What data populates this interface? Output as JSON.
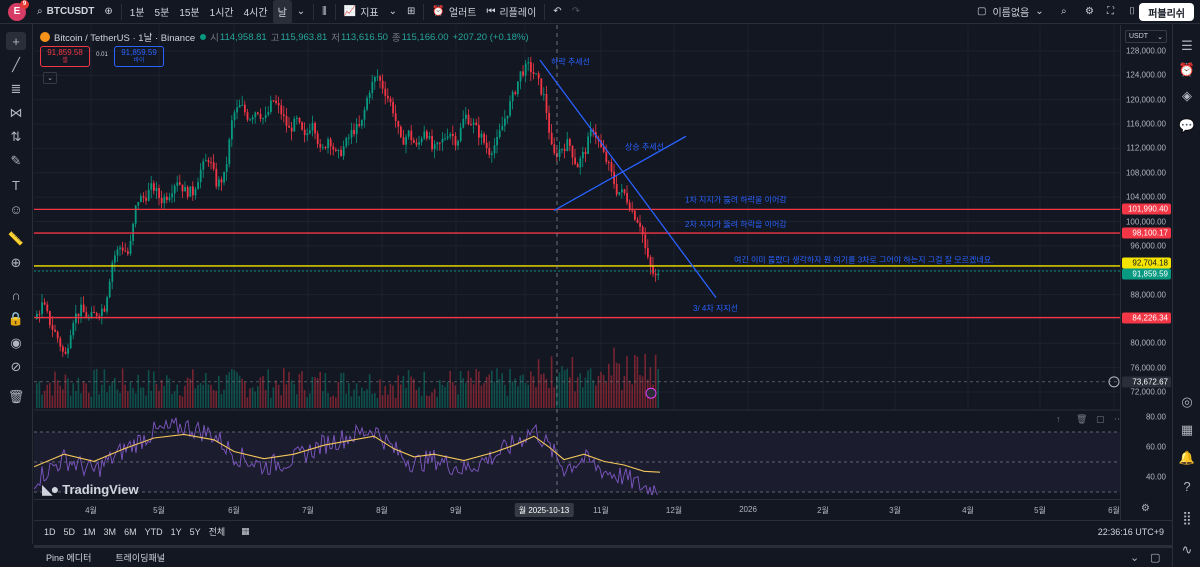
{
  "toolbar": {
    "avatar_letter": "E",
    "avatar_badge": "9",
    "symbol": "BTCUSDT",
    "timeframes": [
      "1분",
      "5분",
      "15분",
      "1시간",
      "4시간",
      "날"
    ],
    "active_timeframe": "날",
    "indicators_label": "지표",
    "alert_label": "얼러트",
    "replay_label": "리플레이",
    "layout_name": "이름없음",
    "publish_label": "퍼블리쉬"
  },
  "legend": {
    "pair": "Bitcoin / TetherUS · 1날 · Binance",
    "open_key": "시",
    "open": "114,958.81",
    "high_key": "고",
    "high": "115,963.81",
    "low_key": "저",
    "low": "113,616.50",
    "close_key": "종",
    "close": "115,166.00",
    "change": "+207.20 (+0.18%)"
  },
  "trade": {
    "sell_price": "91,859.58",
    "sell_label": "셀",
    "spread": "0.01",
    "buy_price": "91,859.59",
    "buy_label": "바이"
  },
  "price_scale": {
    "currency": "USDT",
    "ticks": [
      "128,000.00",
      "124,000.00",
      "120,000.00",
      "116,000.00",
      "112,000.00",
      "108,000.00",
      "104,000.00",
      "100,000.00",
      "96,000.00",
      "92,000.00",
      "88,000.00",
      "84,000.00",
      "80,000.00",
      "76,000.00",
      "72,000.00"
    ],
    "labels": [
      {
        "text": "101,990.40",
        "color": "#f23645"
      },
      {
        "text": "98,100.17",
        "color": "#f23645"
      },
      {
        "text": "92,704.18",
        "color": "#f5e400"
      },
      {
        "text": "91,859.59",
        "color": "#089981"
      },
      {
        "text": "84,226.34",
        "color": "#f23645"
      },
      {
        "text": "73,672.67",
        "color": "#2a2e39"
      }
    ],
    "rsi_ticks": [
      "80.00",
      "60.00",
      "40.00"
    ]
  },
  "annotations": {
    "down_trend": "하락 추세선",
    "up_trend": "상승 추세선",
    "support1": "1차 지지가 뚫려 하락을 이어감",
    "support2": "2차 지지가 뚫려 하락을 이어감",
    "note": "여긴 이미 뚫렸다 생각하자 뭔 여기를 3차로 그어야 하는지 그걸 잘 모르겠네요.",
    "support34": "3/ 4차 지지선"
  },
  "time_axis": {
    "ticks": [
      "4월",
      "5월",
      "6월",
      "7월",
      "8월",
      "9월",
      "10",
      "11월",
      "12월",
      "2026",
      "2월",
      "3월",
      "4월",
      "5월",
      "6월"
    ],
    "crosshair": "월 2025-10-13"
  },
  "range_bar": {
    "ranges": [
      "1D",
      "5D",
      "1M",
      "3M",
      "6M",
      "YTD",
      "1Y",
      "5Y",
      "전체"
    ],
    "clock": "22:36:16 UTC+9"
  },
  "bottom_panel": {
    "tabs": [
      "Pine 에디터",
      "트레이딩패널"
    ]
  },
  "branding": {
    "logo_text": "TradingView"
  },
  "colors": {
    "up": "#089981",
    "down": "#f23645",
    "accent": "#2962ff",
    "yellow": "#f5e400",
    "rsi": "#7e57c2",
    "rsi_ma": "#f5c85b"
  },
  "chart_data": {
    "type": "candlestick",
    "ylim": [
      70000,
      130000
    ],
    "ticks_y": [
      128000,
      124000,
      120000,
      116000,
      112000,
      108000,
      104000,
      100000,
      96000,
      92000,
      88000,
      84000,
      80000,
      76000,
      72000
    ],
    "x_ticks": [
      "4월",
      "5월",
      "6월",
      "7월",
      "8월",
      "9월",
      "10",
      "11월",
      "12월",
      "2026",
      "2월",
      "3월",
      "4월",
      "5월",
      "6월"
    ],
    "close_path": [
      [
        0,
        84000
      ],
      [
        8,
        86500
      ],
      [
        16,
        83000
      ],
      [
        24,
        80500
      ],
      [
        30,
        77500
      ],
      [
        38,
        84000
      ],
      [
        46,
        85500
      ],
      [
        54,
        84000
      ],
      [
        62,
        85000
      ],
      [
        70,
        86000
      ],
      [
        78,
        94000
      ],
      [
        86,
        96000
      ],
      [
        94,
        94500
      ],
      [
        102,
        103500
      ],
      [
        110,
        104000
      ],
      [
        118,
        105800
      ],
      [
        126,
        103500
      ],
      [
        134,
        104500
      ],
      [
        142,
        107000
      ],
      [
        150,
        105000
      ],
      [
        158,
        104800
      ],
      [
        166,
        108500
      ],
      [
        174,
        110500
      ],
      [
        182,
        106000
      ],
      [
        190,
        107500
      ],
      [
        198,
        117500
      ],
      [
        206,
        119000
      ],
      [
        214,
        117000
      ],
      [
        222,
        118500
      ],
      [
        230,
        116500
      ],
      [
        238,
        120000
      ],
      [
        246,
        118000
      ],
      [
        254,
        115000
      ],
      [
        262,
        116500
      ],
      [
        270,
        113500
      ],
      [
        278,
        117000
      ],
      [
        286,
        111000
      ],
      [
        294,
        114000
      ],
      [
        302,
        110500
      ],
      [
        310,
        112500
      ],
      [
        318,
        115000
      ],
      [
        326,
        115500
      ],
      [
        334,
        121500
      ],
      [
        342,
        124000
      ],
      [
        350,
        121500
      ],
      [
        358,
        118500
      ],
      [
        366,
        113000
      ],
      [
        374,
        114500
      ],
      [
        382,
        112000
      ],
      [
        390,
        115500
      ],
      [
        398,
        111500
      ],
      [
        406,
        112800
      ],
      [
        414,
        115000
      ],
      [
        422,
        113000
      ],
      [
        430,
        117500
      ],
      [
        438,
        116000
      ],
      [
        446,
        114000
      ],
      [
        454,
        111500
      ],
      [
        462,
        113000
      ],
      [
        470,
        117000
      ],
      [
        478,
        120500
      ],
      [
        486,
        124500
      ],
      [
        494,
        125500
      ],
      [
        502,
        123500
      ],
      [
        510,
        120000
      ],
      [
        518,
        110500
      ],
      [
        526,
        112000
      ],
      [
        534,
        113000
      ],
      [
        542,
        109000
      ],
      [
        550,
        111500
      ],
      [
        558,
        115500
      ],
      [
        566,
        112000
      ],
      [
        574,
        109000
      ],
      [
        582,
        105000
      ],
      [
        590,
        104500
      ],
      [
        598,
        101500
      ],
      [
        606,
        99500
      ],
      [
        612,
        94000
      ],
      [
        618,
        91500
      ],
      [
        622,
        90500
      ],
      [
        626,
        91859
      ]
    ],
    "support_levels": [
      101990.4,
      98100.17,
      92704.18,
      84226.34
    ],
    "current_price": 91859.59,
    "rsi_ticks": [
      80,
      60,
      40
    ],
    "rsi_path": [
      [
        0,
        38
      ],
      [
        30,
        52
      ],
      [
        60,
        44
      ],
      [
        90,
        58
      ],
      [
        120,
        70
      ],
      [
        150,
        74
      ],
      [
        180,
        68
      ],
      [
        200,
        55
      ],
      [
        230,
        47
      ],
      [
        260,
        52
      ],
      [
        290,
        62
      ],
      [
        310,
        66
      ],
      [
        340,
        72
      ],
      [
        360,
        58
      ],
      [
        380,
        49
      ],
      [
        400,
        52
      ],
      [
        430,
        45
      ],
      [
        460,
        54
      ],
      [
        480,
        62
      ],
      [
        500,
        72
      ],
      [
        515,
        60
      ],
      [
        530,
        46
      ],
      [
        550,
        52
      ],
      [
        570,
        44
      ],
      [
        590,
        40
      ],
      [
        610,
        33
      ],
      [
        626,
        32
      ]
    ]
  }
}
